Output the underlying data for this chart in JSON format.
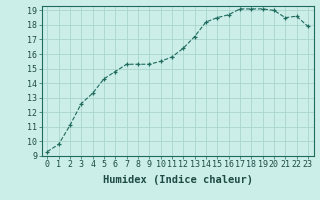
{
  "x": [
    0,
    1,
    2,
    3,
    4,
    5,
    6,
    7,
    8,
    9,
    10,
    11,
    12,
    13,
    14,
    15,
    16,
    17,
    18,
    19,
    20,
    21,
    22,
    23
  ],
  "y": [
    9.3,
    9.8,
    11.1,
    12.6,
    13.3,
    14.3,
    14.8,
    15.3,
    15.3,
    15.3,
    15.5,
    15.8,
    16.4,
    17.2,
    18.2,
    18.5,
    18.7,
    19.1,
    19.1,
    19.1,
    19.0,
    18.5,
    18.6,
    17.9
  ],
  "xlabel": "Humidex (Indice chaleur)",
  "ylim": [
    9,
    19.3
  ],
  "xlim": [
    -0.5,
    23.5
  ],
  "yticks": [
    9,
    10,
    11,
    12,
    13,
    14,
    15,
    16,
    17,
    18,
    19
  ],
  "xticks": [
    0,
    1,
    2,
    3,
    4,
    5,
    6,
    7,
    8,
    9,
    10,
    11,
    12,
    13,
    14,
    15,
    16,
    17,
    18,
    19,
    20,
    21,
    22,
    23
  ],
  "line_color": "#1e6b5e",
  "marker_color": "#1e6b5e",
  "bg_color": "#cceee8",
  "grid_color": "#aad4cc",
  "xlabel_fontsize": 7.5,
  "tick_fontsize": 6.0
}
